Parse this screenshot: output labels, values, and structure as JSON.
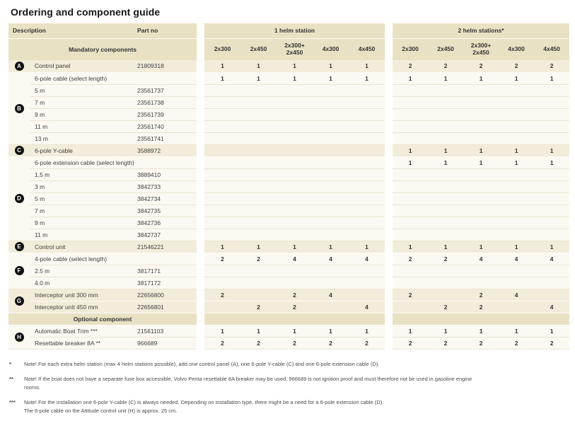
{
  "title": "Ordering and component guide",
  "colors": {
    "header_beige": "#e9e1c4",
    "shaded_row": "#f2ecda",
    "plain_row": "#fbf9f1",
    "badge": "#111111",
    "text": "#3c3c3c"
  },
  "table": {
    "headers": {
      "description": "Description",
      "part_no": "Part no",
      "group1": "1 helm station",
      "group2": "2 helm stations*",
      "mandatory": "Mandatory components",
      "cols1": [
        "2x300",
        "2x450",
        "2x300+\n2x450",
        "4x300",
        "4x450"
      ],
      "cols2": [
        "2x300",
        "2x450",
        "2x300+\n2x450",
        "4x300",
        "4x450"
      ]
    },
    "rows": [
      {
        "b": "A",
        "span": 1,
        "s": true,
        "d": "Control panel",
        "p": "21809318",
        "v": [
          "1",
          "1",
          "1",
          "1",
          "1",
          "2",
          "2",
          "2",
          "2",
          "2"
        ]
      },
      {
        "b": "B",
        "span": 6,
        "s": false,
        "d": "6-pole cable (select length)",
        "p": "",
        "v": [
          "1",
          "1",
          "1",
          "1",
          "1",
          "1",
          "1",
          "1",
          "1",
          "1"
        ]
      },
      {
        "s": false,
        "d": "5 m",
        "p": "23561737"
      },
      {
        "s": false,
        "d": "7 m",
        "p": "23561738"
      },
      {
        "s": false,
        "d": "9 m",
        "p": "23561739"
      },
      {
        "s": false,
        "d": "11 m",
        "p": "23561740"
      },
      {
        "s": false,
        "d": "13 m",
        "p": "23561741"
      },
      {
        "b": "C",
        "span": 1,
        "s": true,
        "d": "6-pole Y-cable",
        "p": "3588972",
        "v": [
          "",
          "",
          "",
          "",
          "",
          "1",
          "1",
          "1",
          "1",
          "1"
        ]
      },
      {
        "b": "D",
        "span": 7,
        "s": false,
        "d": "6-pole extension cable (select length)",
        "p": "",
        "v": [
          "",
          "",
          "",
          "",
          "",
          "1",
          "1",
          "1",
          "1",
          "1"
        ]
      },
      {
        "s": false,
        "d": "1,5 m",
        "p": "3889410"
      },
      {
        "s": false,
        "d": "3 m",
        "p": "3842733"
      },
      {
        "s": false,
        "d": "5 m",
        "p": "3842734"
      },
      {
        "s": false,
        "d": "7 m",
        "p": "3842735"
      },
      {
        "s": false,
        "d": "9 m",
        "p": "3842736"
      },
      {
        "s": false,
        "d": "11 m",
        "p": "3842737"
      },
      {
        "b": "E",
        "span": 1,
        "s": true,
        "d": "Control unit",
        "p": "21546221",
        "v": [
          "1",
          "1",
          "1",
          "1",
          "1",
          "1",
          "1",
          "1",
          "1",
          "1"
        ]
      },
      {
        "b": "F",
        "span": 3,
        "s": false,
        "d": "4-pole cable (select length)",
        "p": "",
        "v": [
          "2",
          "2",
          "4",
          "4",
          "4",
          "2",
          "2",
          "4",
          "4",
          "4"
        ]
      },
      {
        "s": false,
        "d": "2.5 m",
        "p": "3817171"
      },
      {
        "s": false,
        "d": "4.0 m",
        "p": "3817172"
      },
      {
        "b": "G",
        "span": 2,
        "s": true,
        "d": "Interceptor unit 300 mm",
        "p": "22656800",
        "v": [
          "2",
          "",
          "2",
          "4",
          "",
          "2",
          "",
          "2",
          "4",
          ""
        ]
      },
      {
        "s": true,
        "d": "Interceptor unit 450 mm",
        "p": "22656801",
        "v": [
          "",
          "2",
          "2",
          "",
          "4",
          "",
          "2",
          "2",
          "",
          "4"
        ]
      },
      {
        "sec": true,
        "d": "Optional component"
      },
      {
        "b": "H",
        "span": 2,
        "s": false,
        "d": "Automatic Boat Trim ***",
        "p": "21561103",
        "v": [
          "1",
          "1",
          "1",
          "1",
          "1",
          "1",
          "1",
          "1",
          "1",
          "1"
        ]
      },
      {
        "s": false,
        "d": "Resettable breaker 8A **",
        "p": "966689",
        "v": [
          "2",
          "2",
          "2",
          "2",
          "2",
          "2",
          "2",
          "2",
          "2",
          "2"
        ]
      }
    ]
  },
  "footnotes": [
    {
      "marker": "*",
      "lines": [
        "Note! For each extra helm station (max 4 helm stations possible), add one control panel (A), one 6-pole Y-cable (C) and one 6-pole extension cable (D)."
      ]
    },
    {
      "marker": "**",
      "lines": [
        "Note! If the boat does not have a separate fuse box accessible, Volvo Penta resettable 8A breaker may be used. 966689 is not ignition proof and must therefore not be used in gasoline engine",
        "rooms."
      ]
    },
    {
      "marker": "***",
      "lines": [
        "Note! For the installation one 6-pole Y-cable (C) is always needed. Depending on installation type, there might be a need for a 6-pole extension cable (D).",
        "The 6-pole cable on the Attitude control unit (H) is approx. 25 cm."
      ]
    }
  ]
}
